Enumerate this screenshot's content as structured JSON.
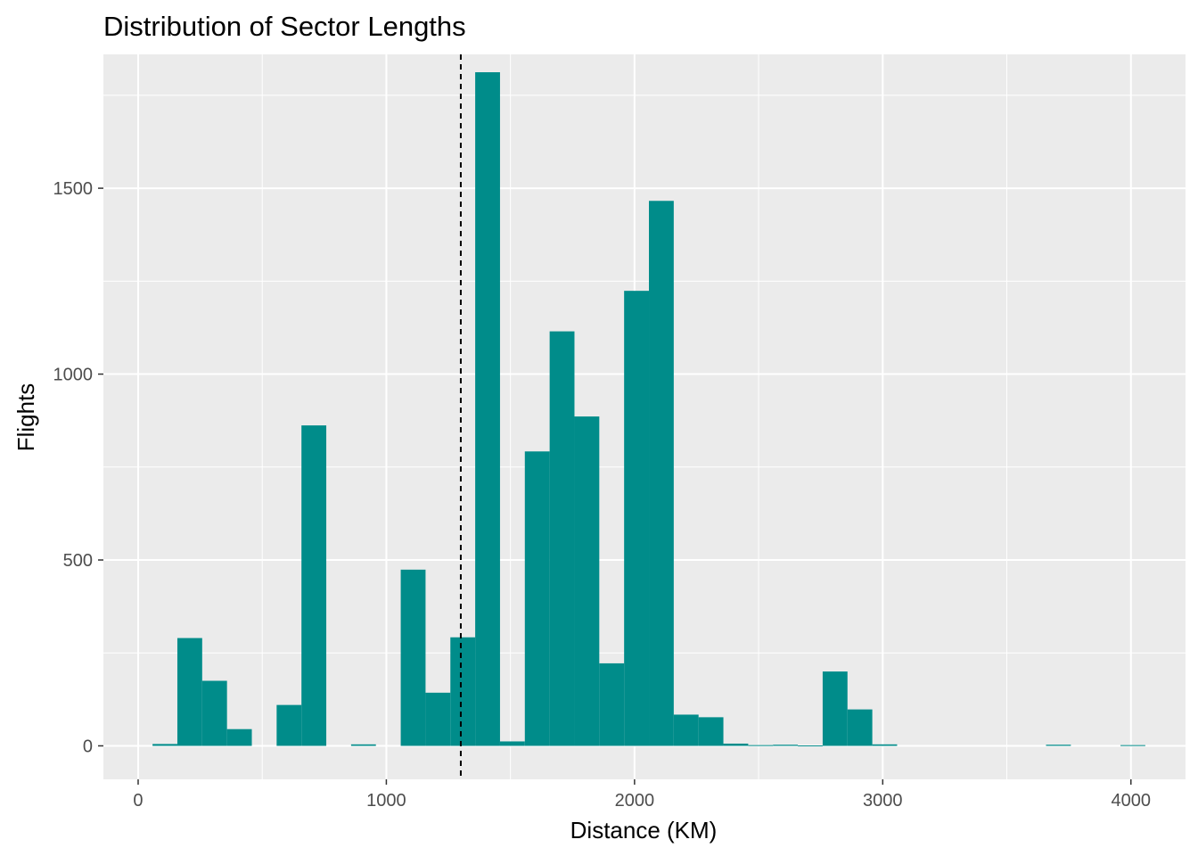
{
  "chart_data": {
    "type": "bar",
    "subtype": "histogram",
    "title": "Distribution of Sector Lengths",
    "xlabel": "Distance (KM)",
    "ylabel": "Flights",
    "xlim": [
      -140,
      4220
    ],
    "ylim": [
      -90,
      1860
    ],
    "x_ticks": [
      0,
      1000,
      2000,
      3000,
      4000
    ],
    "y_ticks": [
      0,
      500,
      1000,
      1500
    ],
    "grid": true,
    "bin_width": 100,
    "bins": [
      {
        "x0": 58,
        "x1": 158,
        "count": 5
      },
      {
        "x0": 158,
        "x1": 258,
        "count": 290
      },
      {
        "x0": 258,
        "x1": 358,
        "count": 175
      },
      {
        "x0": 358,
        "x1": 458,
        "count": 45
      },
      {
        "x0": 458,
        "x1": 558,
        "count": 0
      },
      {
        "x0": 558,
        "x1": 658,
        "count": 110
      },
      {
        "x0": 658,
        "x1": 758,
        "count": 862
      },
      {
        "x0": 758,
        "x1": 858,
        "count": 0
      },
      {
        "x0": 858,
        "x1": 958,
        "count": 4
      },
      {
        "x0": 958,
        "x1": 1058,
        "count": 0
      },
      {
        "x0": 1058,
        "x1": 1158,
        "count": 474
      },
      {
        "x0": 1158,
        "x1": 1258,
        "count": 143
      },
      {
        "x0": 1258,
        "x1": 1358,
        "count": 292
      },
      {
        "x0": 1358,
        "x1": 1458,
        "count": 1812
      },
      {
        "x0": 1458,
        "x1": 1558,
        "count": 12
      },
      {
        "x0": 1558,
        "x1": 1658,
        "count": 792
      },
      {
        "x0": 1658,
        "x1": 1758,
        "count": 1115
      },
      {
        "x0": 1758,
        "x1": 1858,
        "count": 886
      },
      {
        "x0": 1858,
        "x1": 1958,
        "count": 222
      },
      {
        "x0": 1958,
        "x1": 2058,
        "count": 1224
      },
      {
        "x0": 2058,
        "x1": 2158,
        "count": 1466
      },
      {
        "x0": 2158,
        "x1": 2258,
        "count": 84
      },
      {
        "x0": 2258,
        "x1": 2358,
        "count": 77
      },
      {
        "x0": 2358,
        "x1": 2458,
        "count": 6
      },
      {
        "x0": 2458,
        "x1": 2558,
        "count": 2
      },
      {
        "x0": 2558,
        "x1": 2658,
        "count": 3
      },
      {
        "x0": 2658,
        "x1": 2758,
        "count": 1
      },
      {
        "x0": 2758,
        "x1": 2858,
        "count": 200
      },
      {
        "x0": 2858,
        "x1": 2958,
        "count": 98
      },
      {
        "x0": 2958,
        "x1": 3058,
        "count": 4
      },
      {
        "x0": 3058,
        "x1": 3158,
        "count": 0
      },
      {
        "x0": 3158,
        "x1": 3258,
        "count": 0
      },
      {
        "x0": 3258,
        "x1": 3358,
        "count": 0
      },
      {
        "x0": 3358,
        "x1": 3458,
        "count": 0
      },
      {
        "x0": 3458,
        "x1": 3558,
        "count": 0
      },
      {
        "x0": 3558,
        "x1": 3658,
        "count": 0
      },
      {
        "x0": 3658,
        "x1": 3758,
        "count": 3
      },
      {
        "x0": 3758,
        "x1": 3858,
        "count": 0
      },
      {
        "x0": 3858,
        "x1": 3958,
        "count": 0
      },
      {
        "x0": 3958,
        "x1": 4058,
        "count": 2
      }
    ],
    "reference_line": {
      "x": 1300,
      "style": "dashed",
      "color": "#000000"
    },
    "colors": {
      "bar": "#008c8a",
      "panel_background": "#ebebeb",
      "grid": "#ffffff",
      "tick_text": "#4d4d4d"
    }
  }
}
